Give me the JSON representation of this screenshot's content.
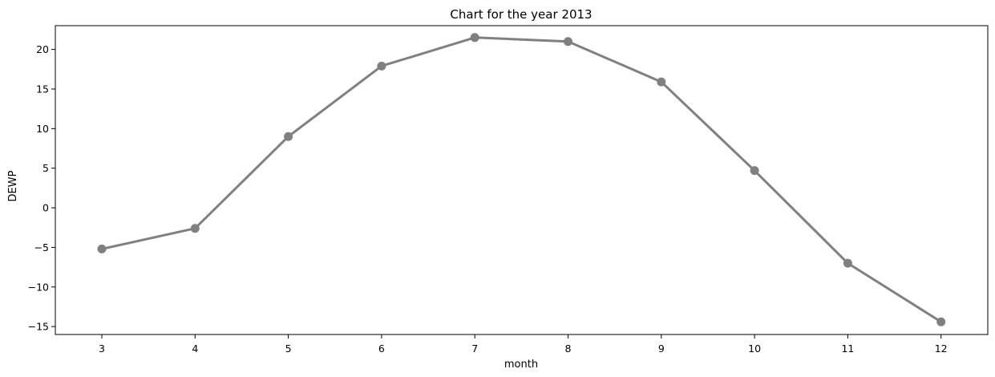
{
  "chart_data": {
    "type": "line",
    "title": "Chart for the year 2013",
    "xlabel": "month",
    "ylabel": "DEWP",
    "categories": [
      "3",
      "4",
      "5",
      "6",
      "7",
      "8",
      "9",
      "10",
      "11",
      "12"
    ],
    "series": [
      {
        "values": [
          -5.2,
          -2.6,
          9.0,
          17.9,
          21.5,
          21.0,
          15.9,
          4.7,
          -7.0,
          -14.4
        ],
        "color": "#808080"
      }
    ],
    "ylim": [
      -16.0,
      23.0
    ],
    "yticks": [
      -15,
      -10,
      -5,
      0,
      5,
      10,
      15,
      20
    ],
    "ytick_labels": [
      "−15",
      "−10",
      "−5",
      "0",
      "5",
      "10",
      "15",
      "20"
    ],
    "grid": false,
    "legend": "none"
  }
}
